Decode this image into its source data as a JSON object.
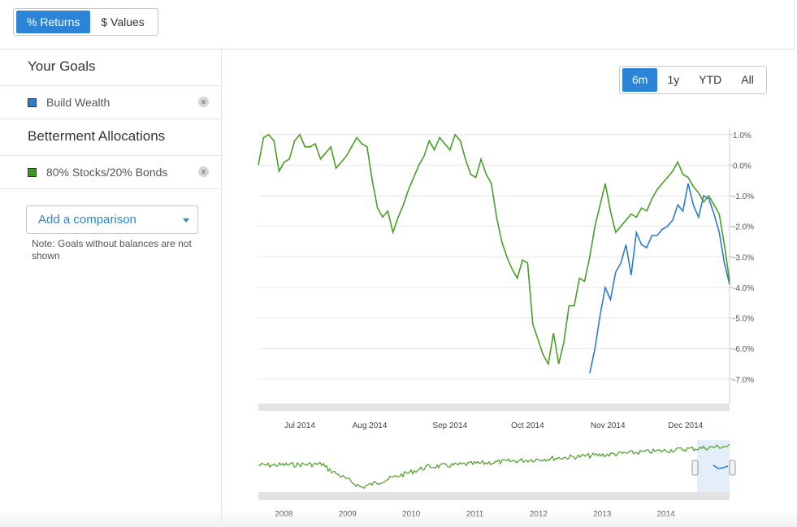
{
  "mode_toggle": {
    "returns_label": "% Returns",
    "values_label": "$ Values"
  },
  "sidebar": {
    "goals_title": "Your Goals",
    "goals": [
      {
        "label": "Build Wealth",
        "color": "#2b7bd1",
        "remove": "x"
      }
    ],
    "allocations_title": "Betterment Allocations",
    "allocations": [
      {
        "label": "80% Stocks/20% Bonds",
        "color": "#3a9a1e",
        "remove": "x"
      }
    ],
    "add_comparison_label": "Add a comparison",
    "note": "Note: Goals without balances are not shown"
  },
  "range_selector": {
    "options": [
      "6m",
      "1y",
      "YTD",
      "All"
    ],
    "selected": "6m"
  },
  "colors": {
    "accent": "#2b84d6",
    "goal_line": "#2b7bd1",
    "allocation_line": "#4a9e25"
  },
  "chart_data": {
    "type": "line",
    "ytick_labels": [
      "1.0%",
      "0.0%",
      "-1.0%",
      "-2.0%",
      "-3.0%",
      "-4.0%",
      "-5.0%",
      "-6.0%",
      "-7.0%"
    ],
    "yticks": [
      1,
      0,
      -1,
      -2,
      -3,
      -4,
      -5,
      -6,
      -7
    ],
    "ylim": [
      -7.8,
      1.1
    ],
    "xtick_labels": [
      "Jul 2014",
      "Aug 2014",
      "Sep 2014",
      "Oct 2014",
      "Nov 2014",
      "Dec 2014"
    ],
    "xtick_positions": [
      4,
      31,
      62,
      92,
      123,
      153
    ],
    "xlim": [
      -12,
      170
    ],
    "series": [
      {
        "name": "Build Wealth",
        "x": [
          116,
          118,
          120,
          122,
          124,
          126,
          128,
          130,
          132,
          134,
          136,
          138,
          140,
          142,
          144,
          146,
          148,
          150,
          152,
          154,
          156,
          158,
          160,
          162,
          164,
          166,
          168,
          170
        ],
        "y": [
          -6.8,
          -6.0,
          -4.9,
          -4.0,
          -4.4,
          -3.5,
          -3.2,
          -2.6,
          -3.6,
          -2.2,
          -2.6,
          -2.7,
          -2.3,
          -2.3,
          -2.1,
          -2.0,
          -1.8,
          -1.3,
          -1.5,
          -0.6,
          -1.3,
          -1.7,
          -1.0,
          -1.1,
          -1.6,
          -2.2,
          -3.2,
          -3.9
        ]
      },
      {
        "name": "80% Stocks/20% Bonds",
        "x": [
          -12,
          -10,
          -8,
          -6,
          -4,
          -2,
          0,
          2,
          4,
          6,
          8,
          10,
          12,
          14,
          16,
          18,
          20,
          22,
          24,
          26,
          28,
          30,
          32,
          34,
          36,
          38,
          40,
          42,
          44,
          46,
          48,
          50,
          52,
          54,
          56,
          58,
          60,
          62,
          64,
          66,
          68,
          70,
          72,
          74,
          76,
          78,
          80,
          82,
          84,
          86,
          88,
          90,
          92,
          94,
          96,
          98,
          100,
          102,
          104,
          106,
          108,
          110,
          112,
          114,
          116,
          118,
          120,
          122,
          124,
          126,
          128,
          130,
          132,
          134,
          136,
          138,
          140,
          142,
          144,
          146,
          148,
          150,
          152,
          154,
          156,
          158,
          160,
          162,
          164,
          166,
          168,
          170
        ],
        "y": [
          0.0,
          0.9,
          1.0,
          0.8,
          -0.2,
          0.1,
          0.2,
          0.8,
          1.0,
          0.6,
          0.6,
          0.7,
          0.2,
          0.4,
          0.6,
          -0.1,
          0.1,
          0.3,
          0.6,
          0.9,
          0.7,
          0.6,
          -0.5,
          -1.4,
          -1.7,
          -1.5,
          -2.2,
          -1.7,
          -1.3,
          -0.8,
          -0.4,
          0.0,
          0.3,
          0.8,
          0.5,
          0.9,
          0.7,
          0.5,
          1.0,
          0.8,
          0.2,
          -0.3,
          -0.4,
          0.2,
          -0.3,
          -0.6,
          -1.7,
          -2.5,
          -3.0,
          -3.4,
          -3.7,
          -3.1,
          -3.2,
          -5.2,
          -5.7,
          -6.2,
          -6.5,
          -5.5,
          -6.5,
          -5.8,
          -4.6,
          -4.6,
          -3.7,
          -3.8,
          -3.0,
          -2.0,
          -1.3,
          -0.6,
          -1.5,
          -2.2,
          -2.0,
          -1.8,
          -1.6,
          -1.7,
          -1.4,
          -1.5,
          -1.1,
          -0.8,
          -0.6,
          -0.4,
          -0.2,
          0.1,
          -0.3,
          -0.4,
          -0.7,
          -0.9,
          -1.2,
          -1.0,
          -1.3,
          -1.6,
          -2.6,
          -3.8
        ]
      }
    ]
  },
  "navigator": {
    "tick_labels": [
      "2008",
      "2009",
      "2010",
      "2011",
      "2012",
      "2013",
      "2014"
    ],
    "tick_positions": [
      2008,
      2009,
      2010,
      2011,
      2012,
      2013,
      2014
    ],
    "xlim": [
      2007.6,
      2015.0
    ]
  }
}
